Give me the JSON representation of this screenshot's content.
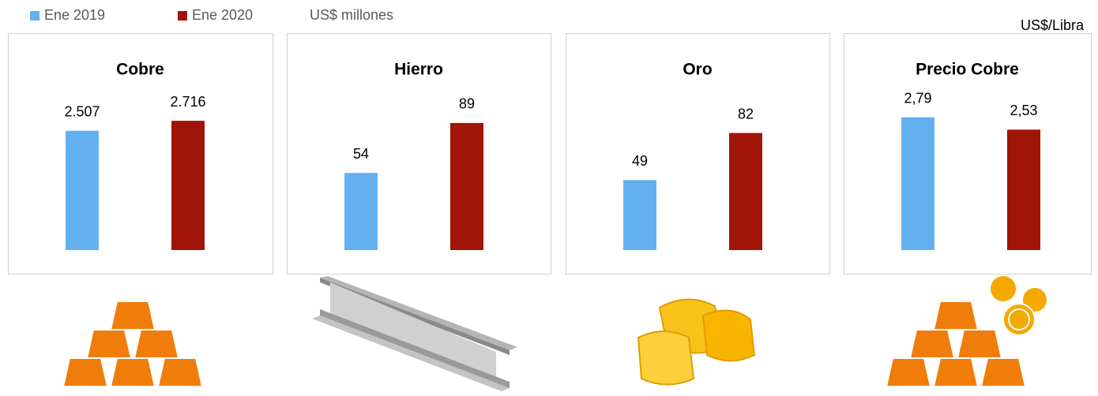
{
  "legend": {
    "series": [
      {
        "name": "Ene 2019",
        "color": "#63b0f0"
      },
      {
        "name": "Ene 2020",
        "color": "#a01508"
      }
    ]
  },
  "units": [
    "US$ millones",
    "US$/Libra"
  ],
  "chart_data": [
    {
      "type": "bar",
      "title": "Cobre",
      "values": [
        2507,
        2716
      ],
      "value_labels": [
        "2.507",
        "2.716"
      ],
      "colors": [
        "#63b0f0",
        "#a01508"
      ],
      "ylim": [
        0,
        3000
      ]
    },
    {
      "type": "bar",
      "title": "Hierro",
      "values": [
        54,
        89
      ],
      "colors": [
        "#63b0f0",
        "#a01508"
      ],
      "ylim": [
        0,
        100
      ]
    },
    {
      "type": "bar",
      "title": "Oro",
      "values": [
        49,
        82
      ],
      "colors": [
        "#63b0f0",
        "#a01508"
      ],
      "ylim": [
        0,
        100
      ]
    },
    {
      "type": "bar",
      "title": "Precio Cobre",
      "values": [
        2.79,
        2.53
      ],
      "value_labels": [
        "2,79",
        "2,53"
      ],
      "colors": [
        "#63b0f0",
        "#a01508"
      ],
      "ylim": [
        0,
        3
      ]
    }
  ]
}
